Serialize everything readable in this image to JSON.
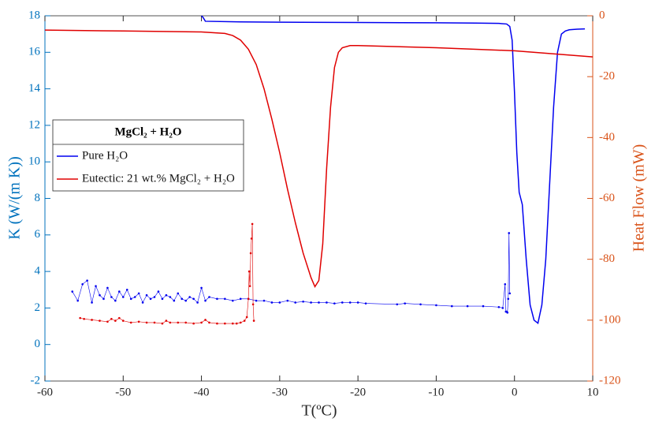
{
  "chart_data": {
    "type": "line",
    "legend_title": "MgCl₂ + H₂O",
    "xlabel": "T(ºC)",
    "ylabel": "K (W/(m K))",
    "y2label": "Heat Flow (mW)",
    "xlim": [
      -60,
      10
    ],
    "xticks": [
      -60,
      -50,
      -40,
      -30,
      -20,
      -10,
      0,
      10
    ],
    "ylim": [
      -2,
      18
    ],
    "yticks": [
      -2,
      0,
      2,
      4,
      6,
      8,
      10,
      12,
      14,
      16,
      18
    ],
    "y2lim": [
      -120,
      0
    ],
    "y2ticks": [
      -120,
      -100,
      -80,
      -60,
      -40,
      -20,
      0
    ],
    "ycolor": "#0072bd",
    "y2color": "#d95319",
    "legend": "upper left",
    "series": [
      {
        "name": "Pure H₂O",
        "color": "#0000f0",
        "axis": "y2",
        "x": [
          -40,
          -39.8,
          -39.5,
          -35,
          -30,
          -20,
          -10,
          -5,
          -2,
          -1,
          -0.6,
          -0.3,
          0,
          0.3,
          0.6,
          0.8,
          1.0,
          1.5,
          2,
          2.5,
          3,
          3.5,
          4,
          4.5,
          5,
          5.5,
          6,
          6.5,
          7,
          8,
          9
        ],
        "values": [
          0,
          -0.5,
          -1.8,
          -2,
          -2.1,
          -2.2,
          -2.3,
          -2.4,
          -2.5,
          -2.7,
          -3.5,
          -8,
          -25,
          -45,
          -58,
          -60,
          -62,
          -80,
          -95,
          -100,
          -101,
          -95,
          -80,
          -55,
          -30,
          -12,
          -6,
          -5,
          -4.6,
          -4.4,
          -4.3
        ]
      },
      {
        "name": "Eutectic: 21 wt.% MgCl₂ + H₂O",
        "color": "#e00000",
        "axis": "y2",
        "x": [
          -60,
          -50,
          -40,
          -37,
          -36,
          -35,
          -34,
          -33,
          -32,
          -31,
          -30,
          -29,
          -28,
          -27,
          -26,
          -25.5,
          -25,
          -24.5,
          -24,
          -23.5,
          -23,
          -22.5,
          -22,
          -21,
          -20,
          -10,
          0,
          10
        ],
        "values": [
          -4.7,
          -5,
          -5.3,
          -5.8,
          -6.5,
          -8,
          -11,
          -16,
          -24,
          -34,
          -45,
          -57,
          -68,
          -78,
          -86,
          -89,
          -87,
          -75,
          -50,
          -30,
          -17,
          -12,
          -10.5,
          -9.8,
          -9.8,
          -10.5,
          -11.5,
          -13.5
        ]
      },
      {
        "color": "#0000f0",
        "markers": true,
        "x": [
          -56.5,
          -55.8,
          -55.2,
          -54.6,
          -54,
          -53.5,
          -53,
          -52.5,
          -52,
          -51.5,
          -51,
          -50.5,
          -50,
          -49.5,
          -49,
          -48.5,
          -48,
          -47.5,
          -47,
          -46.5,
          -46,
          -45.5,
          -45,
          -44.5,
          -44,
          -43.5,
          -43,
          -42.5,
          -42,
          -41.5,
          -41,
          -40.5,
          -40,
          -39.5,
          -39,
          -38,
          -37,
          -36,
          -35,
          -34,
          -33,
          -32,
          -31,
          -30,
          -29,
          -28,
          -27,
          -26,
          -25,
          -24,
          -23,
          -22,
          -21,
          -20,
          -19,
          -15,
          -14,
          -12,
          -10,
          -8,
          -6,
          -4,
          -2,
          -1.5,
          -1.2,
          -1.1,
          -1,
          -0.9,
          -0.8,
          -0.7,
          -0.6
        ],
        "values": [
          2.9,
          2.4,
          3.3,
          3.5,
          2.3,
          3.2,
          2.7,
          2.5,
          3.1,
          2.6,
          2.4,
          2.9,
          2.6,
          3.0,
          2.5,
          2.6,
          2.8,
          2.3,
          2.7,
          2.5,
          2.6,
          2.9,
          2.5,
          2.7,
          2.6,
          2.4,
          2.8,
          2.5,
          2.4,
          2.6,
          2.5,
          2.3,
          3.1,
          2.4,
          2.6,
          2.5,
          2.5,
          2.4,
          2.5,
          2.5,
          2.4,
          2.4,
          2.3,
          2.3,
          2.4,
          2.3,
          2.35,
          2.3,
          2.3,
          2.3,
          2.25,
          2.3,
          2.3,
          2.3,
          2.25,
          2.2,
          2.25,
          2.2,
          2.15,
          2.1,
          2.1,
          2.1,
          2.05,
          2.0,
          3.3,
          1.8,
          1.8,
          1.75,
          2.5,
          6.1,
          2.8
        ]
      },
      {
        "color": "#e00000",
        "markers": true,
        "x": [
          -55.5,
          -55,
          -54,
          -53,
          -52,
          -51.5,
          -51,
          -50.5,
          -50,
          -49,
          -48,
          -47,
          -46,
          -45,
          -44.5,
          -44,
          -43,
          -42,
          -41,
          -40,
          -39.5,
          -39,
          -38,
          -37,
          -36,
          -35.5,
          -35,
          -34.5,
          -34.2,
          -34,
          -33.9,
          -33.8,
          -33.7,
          -33.6,
          -33.5,
          -33.4,
          -33.3
        ],
        "values": [
          1.45,
          1.4,
          1.35,
          1.3,
          1.25,
          1.4,
          1.3,
          1.45,
          1.3,
          1.2,
          1.25,
          1.2,
          1.2,
          1.15,
          1.3,
          1.2,
          1.2,
          1.2,
          1.15,
          1.2,
          1.35,
          1.2,
          1.15,
          1.15,
          1.15,
          1.15,
          1.2,
          1.3,
          1.5,
          2.5,
          4.0,
          3.2,
          5.0,
          5.8,
          6.6,
          2.2,
          1.3
        ]
      }
    ]
  }
}
